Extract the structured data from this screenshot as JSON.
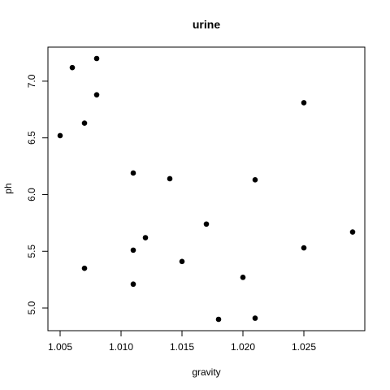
{
  "chart_data": {
    "type": "scatter",
    "title": "urine",
    "xlabel": "gravity",
    "ylabel": "ph",
    "xlim": [
      1.005,
      1.029
    ],
    "ylim": [
      4.9,
      7.2
    ],
    "x_ticks": [
      "1.005",
      "1.010",
      "1.015",
      "1.020",
      "1.025"
    ],
    "y_ticks": [
      "5.0",
      "5.5",
      "6.0",
      "6.5",
      "7.0"
    ],
    "grid": false,
    "legend": "none",
    "marker_color": "#000000",
    "points": [
      {
        "x": 1.005,
        "y": 6.52
      },
      {
        "x": 1.006,
        "y": 7.12
      },
      {
        "x": 1.007,
        "y": 6.63
      },
      {
        "x": 1.007,
        "y": 5.35
      },
      {
        "x": 1.008,
        "y": 7.2
      },
      {
        "x": 1.008,
        "y": 6.88
      },
      {
        "x": 1.011,
        "y": 6.19
      },
      {
        "x": 1.011,
        "y": 5.51
      },
      {
        "x": 1.011,
        "y": 5.21
      },
      {
        "x": 1.012,
        "y": 5.62
      },
      {
        "x": 1.014,
        "y": 6.14
      },
      {
        "x": 1.015,
        "y": 5.41
      },
      {
        "x": 1.017,
        "y": 5.74
      },
      {
        "x": 1.018,
        "y": 4.9
      },
      {
        "x": 1.02,
        "y": 5.27
      },
      {
        "x": 1.021,
        "y": 6.13
      },
      {
        "x": 1.021,
        "y": 4.91
      },
      {
        "x": 1.025,
        "y": 6.81
      },
      {
        "x": 1.025,
        "y": 5.53
      },
      {
        "x": 1.029,
        "y": 5.67
      }
    ]
  }
}
